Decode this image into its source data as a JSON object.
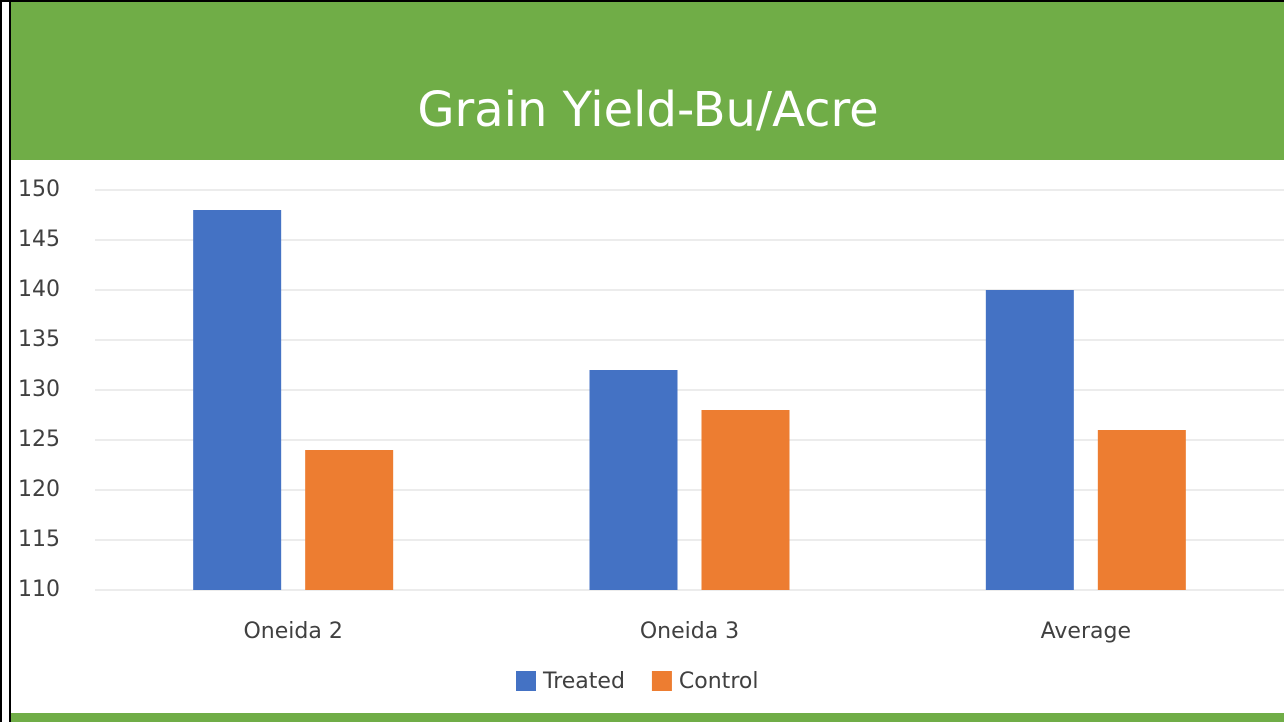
{
  "chart_data": {
    "type": "bar",
    "title": "Grain Yield-Bu/Acre",
    "categories": [
      "Oneida 2",
      "Oneida 3",
      "Average"
    ],
    "series": [
      {
        "name": "Treated",
        "color": "#4472c4",
        "values": [
          148,
          132,
          140
        ]
      },
      {
        "name": "Control",
        "color": "#ed7d31",
        "values": [
          124,
          128,
          126
        ]
      }
    ],
    "ylim": [
      110,
      150
    ],
    "yticks": [
      110,
      115,
      120,
      125,
      130,
      135,
      140,
      145,
      150
    ],
    "grid": true,
    "legend": "bottom"
  }
}
